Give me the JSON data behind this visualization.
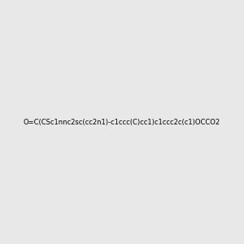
{
  "smiles": "O=C(CSc1nnc2sc(cc2n1)-c1ccc(C)cc1)c1ccc2c(c1)OCCO2",
  "title": "",
  "background_color": "#e8e8e8",
  "bond_color_default": "#000000",
  "atom_colors": {
    "N": "#0000ff",
    "O": "#ff0000",
    "S": "#cccc00",
    "C": "#000000"
  },
  "figsize": [
    3.0,
    3.0
  ],
  "dpi": 100
}
